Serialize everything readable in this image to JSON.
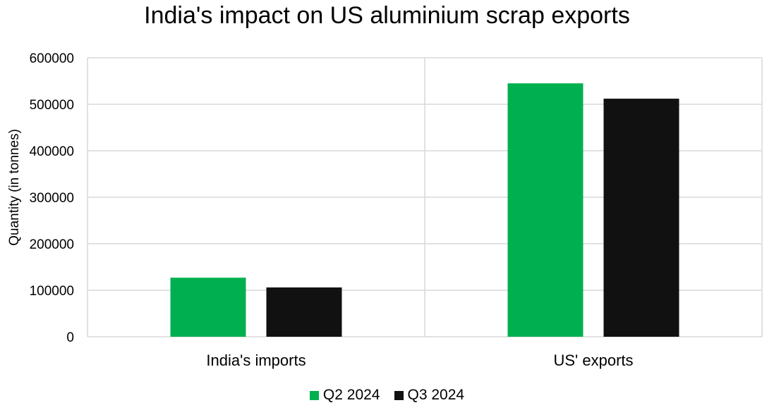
{
  "chart_data": {
    "type": "bar",
    "title": "India's impact on US aluminium scrap exports",
    "xlabel": "",
    "ylabel": "Quantity (in tonnes)",
    "ylim": [
      0,
      600000
    ],
    "yticks": [
      0,
      100000,
      200000,
      300000,
      400000,
      500000,
      600000
    ],
    "categories": [
      "India's imports",
      "US' exports"
    ],
    "series": [
      {
        "name": "Q2 2024",
        "color": "#00b050",
        "values": [
          127000,
          545000
        ]
      },
      {
        "name": "Q3 2024",
        "color": "#111111",
        "values": [
          106000,
          512000
        ]
      }
    ],
    "grid": true,
    "legend_position": "bottom"
  }
}
